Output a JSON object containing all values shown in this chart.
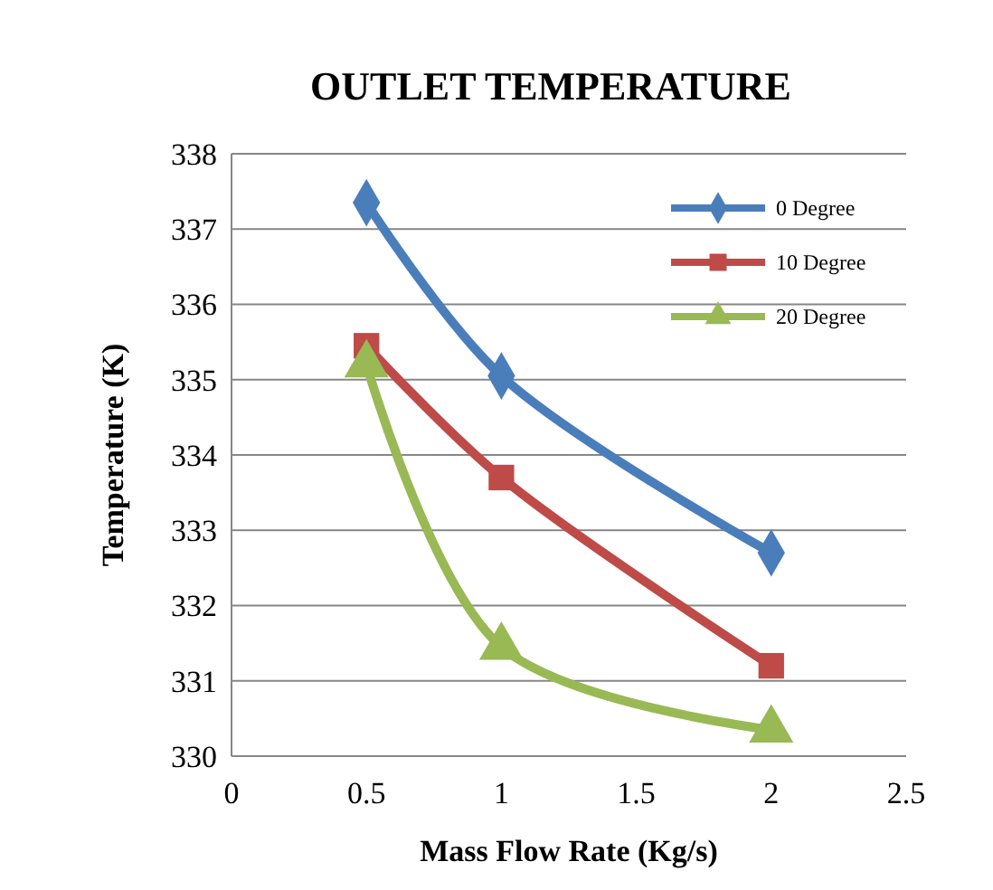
{
  "chart_data": {
    "type": "line",
    "title": "OUTLET TEMPERATURE",
    "xlabel": "Mass Flow Rate (Kg/s)",
    "ylabel": "Temperature (K)",
    "x": [
      0.5,
      1,
      2
    ],
    "series": [
      {
        "name": "0 Degree",
        "color": "#4a7ebb",
        "values": [
          337.35,
          335.05,
          332.7
        ],
        "marker": "diamond"
      },
      {
        "name": "10 Degree",
        "color": "#be4b48",
        "values": [
          335.45,
          333.7,
          331.2
        ],
        "marker": "square"
      },
      {
        "name": "20 Degree",
        "color": "#98b954",
        "values": [
          335.2,
          331.45,
          330.35
        ],
        "marker": "triangle"
      }
    ],
    "xlim": [
      0,
      2.5
    ],
    "xticks": [
      0,
      0.5,
      1,
      1.5,
      2,
      2.5
    ],
    "ylim": [
      330,
      338
    ],
    "yticks": [
      330,
      331,
      332,
      333,
      334,
      335,
      336,
      337,
      338
    ],
    "grid": "y",
    "legend": "top right",
    "line_style": "solid"
  }
}
